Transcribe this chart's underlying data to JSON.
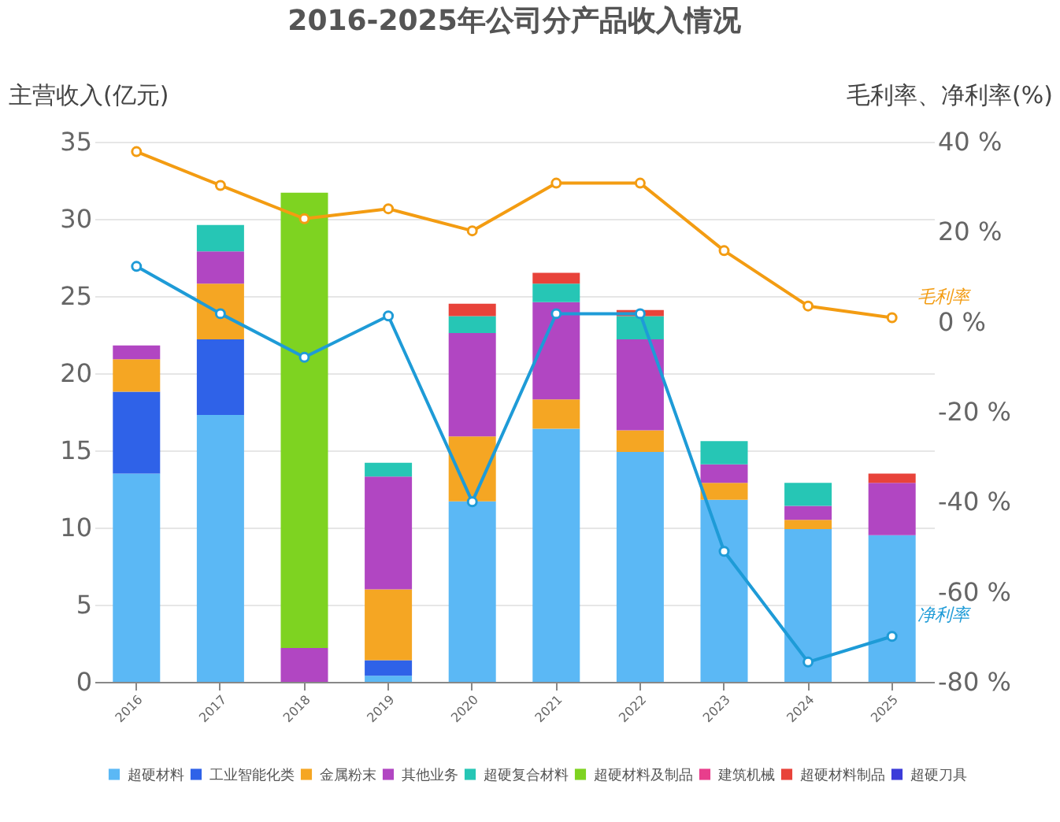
{
  "chart_data": {
    "type": "bar",
    "title": "2016-2025年公司分产品收入情况",
    "ylabel": "主营收入(亿元)",
    "y2label": "毛利率、净利率(%)",
    "categories": [
      "2016",
      "2017",
      "2018",
      "2019",
      "2020",
      "2021",
      "2022",
      "2023",
      "2024",
      "2025"
    ],
    "stacked": true,
    "ylim": [
      0,
      35
    ],
    "yticks": [
      0,
      5,
      10,
      15,
      20,
      25,
      30,
      35
    ],
    "y2lim": [
      -80,
      40
    ],
    "y2ticks": [
      {
        "value": -80,
        "label": "-80 %"
      },
      {
        "value": -60,
        "label": "-60 %"
      },
      {
        "value": -40,
        "label": "-40 %"
      },
      {
        "value": -20,
        "label": "-20 %"
      },
      {
        "value": 0,
        "label": "0 %"
      },
      {
        "value": 20,
        "label": "20 %"
      },
      {
        "value": 40,
        "label": "40 %"
      }
    ],
    "grid": "y",
    "legend": "bottom",
    "series": [
      {
        "name": "超硬材料",
        "color": "#5bb8f5",
        "values": [
          13.5,
          17.3,
          null,
          0.4,
          11.7,
          16.4,
          14.9,
          11.8,
          9.9,
          9.5
        ]
      },
      {
        "name": "工业智能化类",
        "color": "#2f62e8",
        "values": [
          5.3,
          4.9,
          null,
          1.0,
          null,
          null,
          null,
          null,
          null,
          null
        ]
      },
      {
        "name": "金属粉末",
        "color": "#f5a623",
        "values": [
          2.1,
          3.6,
          null,
          4.6,
          4.2,
          1.9,
          1.4,
          1.1,
          0.6,
          null
        ]
      },
      {
        "name": "其他业务",
        "color": "#b146c2",
        "values": [
          0.9,
          2.1,
          2.2,
          7.3,
          6.7,
          6.3,
          5.9,
          1.2,
          0.9,
          3.4
        ]
      },
      {
        "name": "超硬复合材料",
        "color": "#26c6b5",
        "values": [
          null,
          1.7,
          null,
          0.9,
          1.1,
          1.2,
          1.5,
          1.5,
          1.5,
          null
        ]
      },
      {
        "name": "超硬材料及制品",
        "color": "#7ed321",
        "values": [
          null,
          null,
          29.5,
          null,
          null,
          null,
          null,
          null,
          null,
          null
        ]
      },
      {
        "name": "建筑机械",
        "color": "#e83e8c",
        "values": [
          null,
          null,
          null,
          null,
          null,
          null,
          null,
          null,
          null,
          null
        ]
      },
      {
        "name": "超硬材料制品",
        "color": "#e8433a",
        "values": [
          null,
          null,
          null,
          null,
          0.8,
          0.7,
          0.4,
          null,
          null,
          0.6
        ]
      },
      {
        "name": "超硬刀具",
        "color": "#3b3bd9",
        "values": [
          null,
          null,
          null,
          null,
          null,
          null,
          null,
          null,
          null,
          null
        ]
      },
      {
        "name": "毛利率",
        "type": "line",
        "axis": "y2",
        "color": "#f39c12",
        "marker": "circle",
        "values": [
          37.8,
          30.3,
          22.9,
          25.1,
          20.2,
          30.8,
          30.8,
          15.8,
          3.5,
          0.9
        ]
      },
      {
        "name": "净利率",
        "type": "line",
        "axis": "y2",
        "color": "#1e9bd7",
        "marker": "circle",
        "values": [
          12.3,
          1.8,
          -7.9,
          1.3,
          -40,
          1.8,
          1.8,
          -51,
          -75.6,
          -69.9
        ]
      }
    ]
  }
}
